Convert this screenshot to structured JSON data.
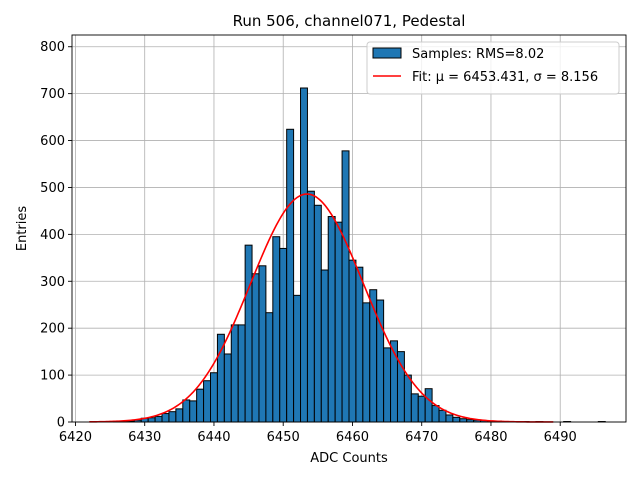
{
  "chart_data": {
    "type": "bar",
    "title": "Run 506, channel071, Pedestal",
    "xlabel": "ADC Counts",
    "ylabel": "Entries",
    "xlim": [
      6419.5,
      6499.5
    ],
    "ylim": [
      0,
      825
    ],
    "xticks": [
      6420,
      6430,
      6440,
      6450,
      6460,
      6470,
      6480,
      6490
    ],
    "yticks": [
      0,
      100,
      200,
      300,
      400,
      500,
      600,
      700,
      800
    ],
    "grid": true,
    "legend_position": "top-right",
    "histogram": {
      "name": "Samples: RMS=8.02",
      "color": "#1f77b4",
      "edgecolor": "#000000",
      "bin_width": 1,
      "bin_centers": [
        6426,
        6427,
        6428,
        6429,
        6430,
        6431,
        6432,
        6433,
        6434,
        6435,
        6436,
        6437,
        6438,
        6439,
        6440,
        6441,
        6442,
        6443,
        6444,
        6445,
        6446,
        6447,
        6448,
        6449,
        6450,
        6451,
        6452,
        6453,
        6454,
        6455,
        6456,
        6457,
        6458,
        6459,
        6460,
        6461,
        6462,
        6463,
        6464,
        6465,
        6466,
        6467,
        6468,
        6469,
        6470,
        6471,
        6472,
        6473,
        6474,
        6475,
        6476,
        6477,
        6478,
        6479,
        6480,
        6481,
        6482,
        6483,
        6484,
        6485,
        6486,
        6487,
        6488,
        6489,
        6490,
        6491,
        6492,
        6493,
        6494,
        6495,
        6496
      ],
      "values": [
        1,
        1,
        2,
        4,
        8,
        9,
        12,
        18,
        22,
        28,
        47,
        45,
        70,
        88,
        105,
        187,
        145,
        207,
        207,
        377,
        316,
        333,
        233,
        395,
        370,
        624,
        270,
        712,
        492,
        462,
        324,
        438,
        426,
        578,
        345,
        330,
        254,
        282,
        260,
        158,
        173,
        150,
        100,
        60,
        55,
        71,
        35,
        25,
        15,
        10,
        7,
        5,
        4,
        3,
        2,
        2,
        1,
        1,
        1,
        1,
        0,
        1,
        0,
        0,
        0,
        1,
        0,
        0,
        0,
        0,
        1
      ]
    },
    "fit": {
      "name": "Fit: μ = 6453.431, σ = 8.156",
      "color": "#ff0000",
      "type": "gaussian",
      "mu": 6453.431,
      "sigma": 8.156,
      "amplitude": 486,
      "x_range": [
        6422,
        6489
      ]
    }
  }
}
